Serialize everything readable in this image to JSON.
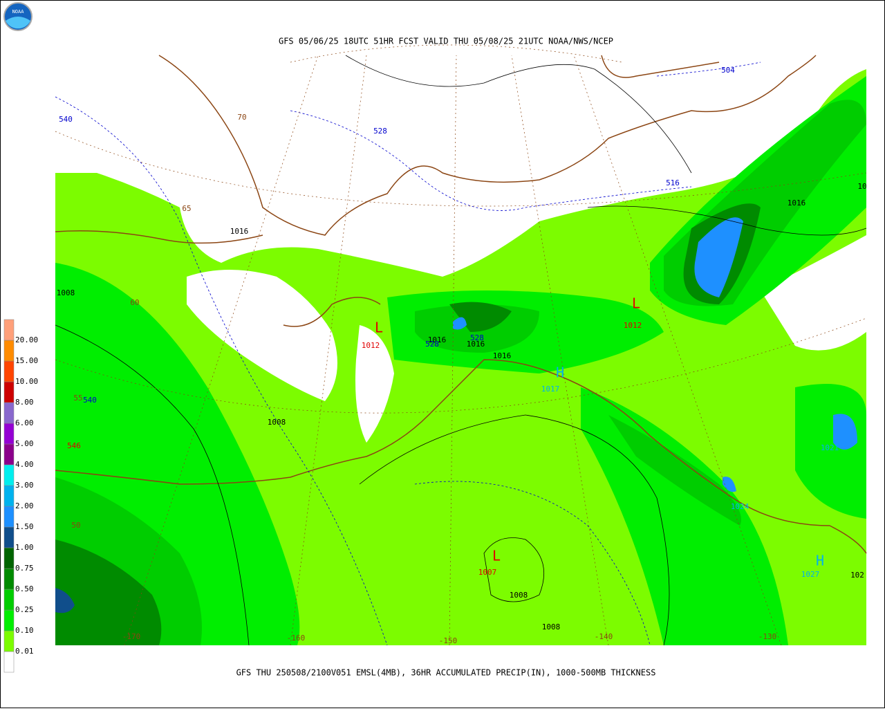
{
  "header": {
    "title": "GFS 05/06/25 18UTC 51HR FCST VALID THU 05/08/25 21UTC NOAA/NWS/NCEP"
  },
  "footer": {
    "caption": "GFS THU 250508/2100V051 EMSL(4MB), 36HR ACCUMULATED PRECIP(IN), 1000-500MB THICKNESS"
  },
  "logo": {
    "label": "NOAA"
  },
  "legend": {
    "labels": [
      "0.01",
      "0.10",
      "0.25",
      "0.50",
      "0.75",
      "1.00",
      "1.50",
      "2.00",
      "3.00",
      "4.00",
      "5.00",
      "6.00",
      "8.00",
      "10.00",
      "15.00",
      "20.00"
    ],
    "colors": [
      "#ffffff",
      "#7cfc00",
      "#00ee00",
      "#00cd00",
      "#008b00",
      "#006400",
      "#104e8b",
      "#1e90ff",
      "#00b2ee",
      "#00eeee",
      "#8b008b",
      "#9400d3",
      "#8968cd",
      "#cd0000",
      "#ff4500",
      "#ff8c00",
      "#ffa07a"
    ]
  },
  "map": {
    "labels": [
      "540",
      "528",
      "504",
      "516",
      "1016",
      "1016",
      "70",
      "65",
      "60",
      "55",
      "50",
      "1008",
      "L",
      "1012",
      "1016",
      "528",
      "528",
      "1016",
      "1016",
      "H",
      "1017",
      "L",
      "1012",
      "540",
      "546",
      "1008",
      "L",
      "1007",
      "1008",
      "1008",
      "-170",
      "-160",
      "-150",
      "-140",
      "-130",
      "H",
      "1027",
      "1021",
      "102",
      "10",
      "1024"
    ]
  }
}
